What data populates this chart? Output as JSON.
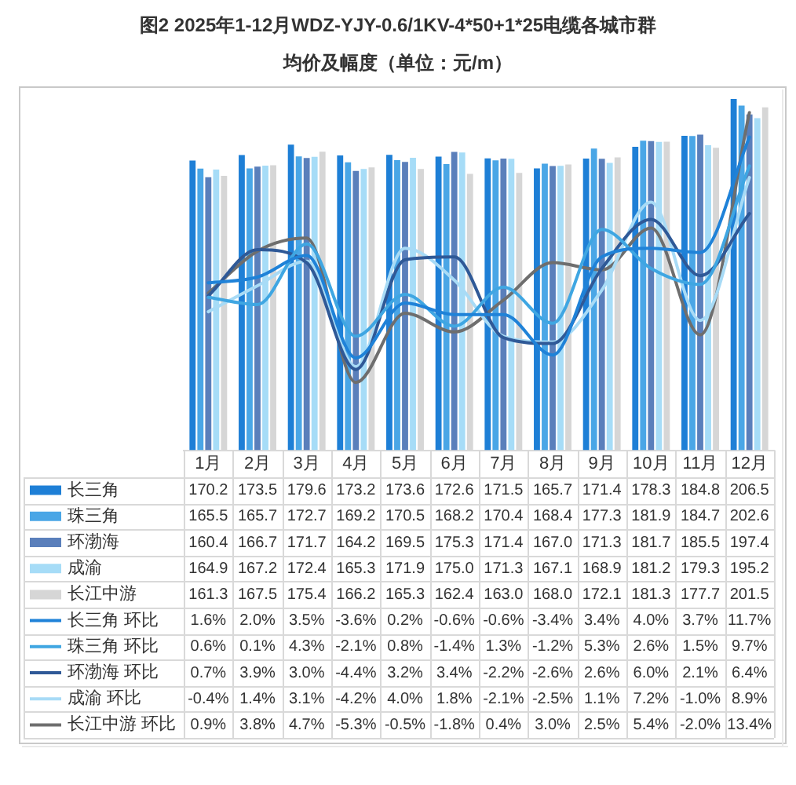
{
  "chart_data": {
    "type": "bar",
    "title": "图2 2025年1-12月WDZ-YJY-0.6/1KV-4*50+1*25电缆各城市群",
    "subtitle": "均价及幅度（单位：元/m）",
    "categories": [
      "1月",
      "2月",
      "3月",
      "4月",
      "5月",
      "6月",
      "7月",
      "8月",
      "9月",
      "10月",
      "11月",
      "12月"
    ],
    "series": [
      {
        "name": "长三角",
        "color": "#1e7fd6",
        "values": [
          170.2,
          173.5,
          179.6,
          173.2,
          173.6,
          172.6,
          171.5,
          165.7,
          171.4,
          178.3,
          184.8,
          206.5
        ],
        "value_labels": [
          "170.2",
          "173.5",
          "179.6",
          "173.2",
          "173.6",
          "172.6",
          "171.5",
          "165.7",
          "171.4",
          "178.3",
          "184.8",
          "206.5"
        ]
      },
      {
        "name": "珠三角",
        "color": "#4aa6e6",
        "values": [
          165.5,
          165.7,
          172.7,
          169.2,
          170.5,
          168.2,
          170.4,
          168.4,
          177.3,
          181.9,
          184.7,
          202.6
        ],
        "value_labels": [
          "165.5",
          "165.7",
          "172.7",
          "169.2",
          "170.5",
          "168.2",
          "170.4",
          "168.4",
          "177.3",
          "181.9",
          "184.7",
          "202.6"
        ]
      },
      {
        "name": "环渤海",
        "color": "#5a7fbb",
        "values": [
          160.4,
          166.7,
          171.7,
          164.2,
          169.5,
          175.3,
          171.4,
          167.0,
          171.3,
          181.7,
          185.5,
          197.4
        ],
        "value_labels": [
          "160.4",
          "166.7",
          "171.7",
          "164.2",
          "169.5",
          "175.3",
          "171.4",
          "167.0",
          "171.3",
          "181.7",
          "185.5",
          "197.4"
        ]
      },
      {
        "name": "成渝",
        "color": "#a6dcf7",
        "values": [
          164.9,
          167.2,
          172.4,
          165.3,
          171.9,
          175.0,
          171.3,
          167.1,
          168.9,
          181.2,
          179.3,
          195.2
        ],
        "value_labels": [
          "164.9",
          "167.2",
          "172.4",
          "165.3",
          "171.9",
          "175.0",
          "171.3",
          "167.1",
          "168.9",
          "181.2",
          "179.3",
          "195.2"
        ]
      },
      {
        "name": "长江中游",
        "color": "#d6d6d6",
        "values": [
          161.3,
          167.5,
          175.4,
          166.2,
          165.3,
          162.4,
          163.0,
          168.0,
          172.1,
          181.3,
          177.7,
          201.5
        ],
        "value_labels": [
          "161.3",
          "167.5",
          "175.4",
          "166.2",
          "165.3",
          "162.4",
          "163.0",
          "168.0",
          "172.1",
          "181.3",
          "177.7",
          "201.5"
        ]
      },
      {
        "name": "长三角 环比",
        "type": "line",
        "axis": "y2",
        "color": "#1f82d8",
        "values": [
          1.6,
          2.0,
          3.5,
          -3.6,
          0.2,
          -0.6,
          -0.6,
          -3.4,
          3.4,
          4.0,
          3.7,
          11.7
        ],
        "value_labels": [
          "1.6%",
          "2.0%",
          "3.5%",
          "-3.6%",
          "0.2%",
          "-0.6%",
          "-0.6%",
          "-3.4%",
          "3.4%",
          "4.0%",
          "3.7%",
          "11.7%"
        ]
      },
      {
        "name": "珠三角 环比",
        "type": "line",
        "axis": "y2",
        "color": "#3fa6e2",
        "values": [
          0.6,
          0.1,
          4.3,
          -2.1,
          0.8,
          -1.4,
          1.3,
          -1.2,
          5.3,
          2.6,
          1.5,
          9.7
        ],
        "value_labels": [
          "0.6%",
          "0.1%",
          "4.3%",
          "-2.1%",
          "0.8%",
          "-1.4%",
          "1.3%",
          "-1.2%",
          "5.3%",
          "2.6%",
          "1.5%",
          "9.7%"
        ]
      },
      {
        "name": "环渤海 环比",
        "type": "line",
        "axis": "y2",
        "color": "#2f5997",
        "values": [
          0.7,
          3.9,
          3.0,
          -4.4,
          3.2,
          3.4,
          -2.2,
          -2.6,
          2.6,
          6.0,
          2.1,
          6.4
        ],
        "value_labels": [
          "0.7%",
          "3.9%",
          "3.0%",
          "-4.4%",
          "3.2%",
          "3.4%",
          "-2.2%",
          "-2.6%",
          "2.6%",
          "6.0%",
          "2.1%",
          "6.4%"
        ]
      },
      {
        "name": "成渝 环比",
        "type": "line",
        "axis": "y2",
        "color": "#a8dbf6",
        "values": [
          -0.4,
          1.4,
          3.1,
          -4.2,
          4.0,
          1.8,
          -2.1,
          -2.5,
          1.1,
          7.2,
          -1.0,
          8.9
        ],
        "value_labels": [
          "-0.4%",
          "1.4%",
          "3.1%",
          "-4.2%",
          "4.0%",
          "1.8%",
          "-2.1%",
          "-2.5%",
          "1.1%",
          "7.2%",
          "-1.0%",
          "8.9%"
        ]
      },
      {
        "name": "长江中游 环比",
        "type": "line",
        "axis": "y2",
        "color": "#6e6e6e",
        "values": [
          0.9,
          3.8,
          4.7,
          -5.3,
          -0.5,
          -1.8,
          0.4,
          3.0,
          2.5,
          5.4,
          -2.0,
          13.4
        ],
        "value_labels": [
          "0.9%",
          "3.8%",
          "4.7%",
          "-5.3%",
          "-0.5%",
          "-1.8%",
          "0.4%",
          "3.0%",
          "2.5%",
          "5.4%",
          "-2.0%",
          "13.4%"
        ]
      }
    ],
    "ylim": [
      0,
      212
    ],
    "y2lim": [
      -10,
      15
    ],
    "tick_labels": "x",
    "legend": "bottom"
  }
}
